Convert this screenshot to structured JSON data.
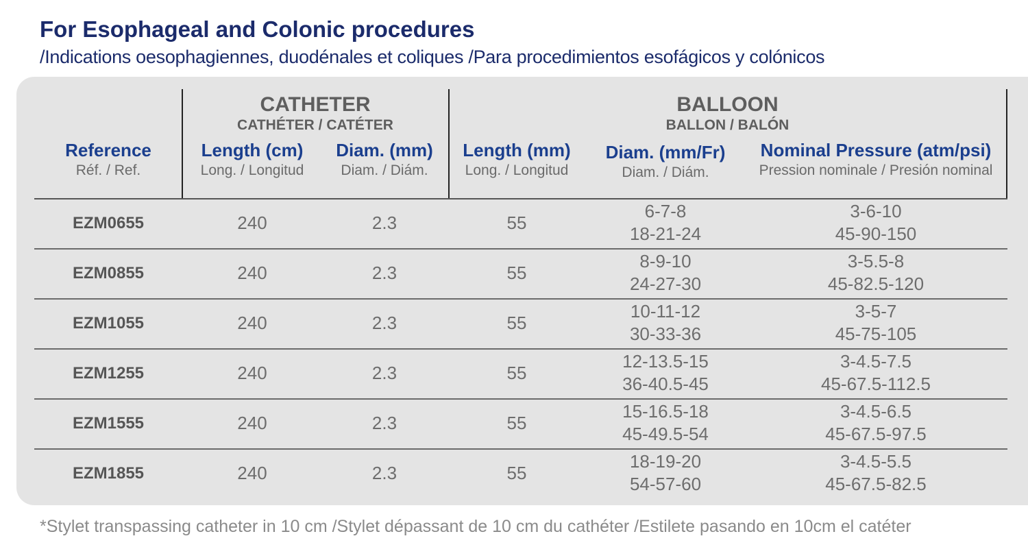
{
  "title": "For Esophageal and Colonic procedures",
  "subtitle": "/Indications oesophagiennes, duodénales et coliques /Para procedimientos esofágicos y colónicos",
  "groups": {
    "catheter": {
      "title": "CATHETER",
      "sub": "CATHÉTER / CATÉTER"
    },
    "balloon": {
      "title": "BALLOON",
      "sub": "BALLON / BALÓN"
    }
  },
  "columns": [
    {
      "title": "Reference",
      "sub": "Réf. / Ref."
    },
    {
      "title": "Length (cm)",
      "sub": "Long. / Longitud"
    },
    {
      "title": "Diam. (mm)",
      "sub": "Diam. / Diám."
    },
    {
      "title": "Length (mm)",
      "sub": "Long. / Longitud"
    },
    {
      "title": "Diam. (mm/Fr)",
      "sub": "Diam. / Diám."
    },
    {
      "title": "Nominal Pressure (atm/psi)",
      "sub": "Pression nominale / Presión nominal"
    }
  ],
  "rows": [
    {
      "ref": "EZM0655",
      "cath_len": "240",
      "cath_diam": "2.3",
      "bal_len": "55",
      "bal_diam_mm": "6-7-8",
      "bal_diam_fr": "18-21-24",
      "pressure_atm": "3-6-10",
      "pressure_psi": "45-90-150"
    },
    {
      "ref": "EZM0855",
      "cath_len": "240",
      "cath_diam": "2.3",
      "bal_len": "55",
      "bal_diam_mm": "8-9-10",
      "bal_diam_fr": "24-27-30",
      "pressure_atm": "3-5.5-8",
      "pressure_psi": "45-82.5-120"
    },
    {
      "ref": "EZM1055",
      "cath_len": "240",
      "cath_diam": "2.3",
      "bal_len": "55",
      "bal_diam_mm": "10-11-12",
      "bal_diam_fr": "30-33-36",
      "pressure_atm": "3-5-7",
      "pressure_psi": "45-75-105"
    },
    {
      "ref": "EZM1255",
      "cath_len": "240",
      "cath_diam": "2.3",
      "bal_len": "55",
      "bal_diam_mm": "12-13.5-15",
      "bal_diam_fr": "36-40.5-45",
      "pressure_atm": "3-4.5-7.5",
      "pressure_psi": "45-67.5-112.5"
    },
    {
      "ref": "EZM1555",
      "cath_len": "240",
      "cath_diam": "2.3",
      "bal_len": "55",
      "bal_diam_mm": "15-16.5-18",
      "bal_diam_fr": "45-49.5-54",
      "pressure_atm": "3-4.5-6.5",
      "pressure_psi": "45-67.5-97.5"
    },
    {
      "ref": "EZM1855",
      "cath_len": "240",
      "cath_diam": "2.3",
      "bal_len": "55",
      "bal_diam_mm": "18-19-20",
      "bal_diam_fr": "54-57-60",
      "pressure_atm": "3-4.5-5.5",
      "pressure_psi": "45-67.5-82.5"
    }
  ],
  "footnote": "*Stylet transpassing catheter in 10 cm /Stylet dépassant de 10 cm du cathéter /Estilete pasando en 10cm el catéter"
}
